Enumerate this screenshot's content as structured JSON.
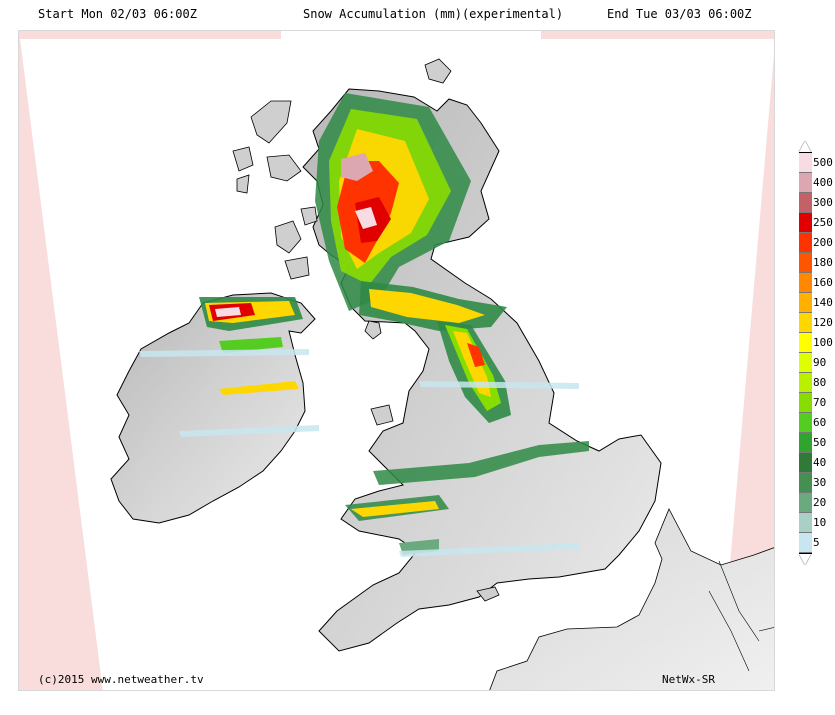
{
  "header": {
    "start_label": "Start Mon 02/03 06:00Z",
    "title": "Snow Accumulation (mm)(experimental)",
    "end_label": "End Tue 03/03 06:00Z"
  },
  "footer": {
    "copyright": "(c)2015 www.netweather.tv",
    "credit": "NetWx-SR"
  },
  "legend": {
    "items": [
      {
        "label": "500",
        "color": "#f7dde3"
      },
      {
        "label": "400",
        "color": "#dca7b0"
      },
      {
        "label": "300",
        "color": "#c46068"
      },
      {
        "label": "250",
        "color": "#e00000"
      },
      {
        "label": "200",
        "color": "#ff3300"
      },
      {
        "label": "180",
        "color": "#ff5500"
      },
      {
        "label": "160",
        "color": "#ff8800"
      },
      {
        "label": "140",
        "color": "#ffb000"
      },
      {
        "label": "120",
        "color": "#ffd700"
      },
      {
        "label": "100",
        "color": "#ffff00"
      },
      {
        "label": "90",
        "color": "#ddff00"
      },
      {
        "label": "80",
        "color": "#b8f000"
      },
      {
        "label": "70",
        "color": "#88dd00"
      },
      {
        "label": "60",
        "color": "#55cc22"
      },
      {
        "label": "50",
        "color": "#2fa52f"
      },
      {
        "label": "40",
        "color": "#2f7a36"
      },
      {
        "label": "30",
        "color": "#468f53"
      },
      {
        "label": "20",
        "color": "#6aaa7e"
      },
      {
        "label": "10",
        "color": "#a9d0c7"
      },
      {
        "label": "5",
        "color": "#c8e6ef"
      }
    ]
  },
  "map": {
    "land_color": "#c9c9c9",
    "sea_color": "#ffffff",
    "outside_domain_color": "#f9dcdc",
    "coastline_color": "#000000"
  }
}
